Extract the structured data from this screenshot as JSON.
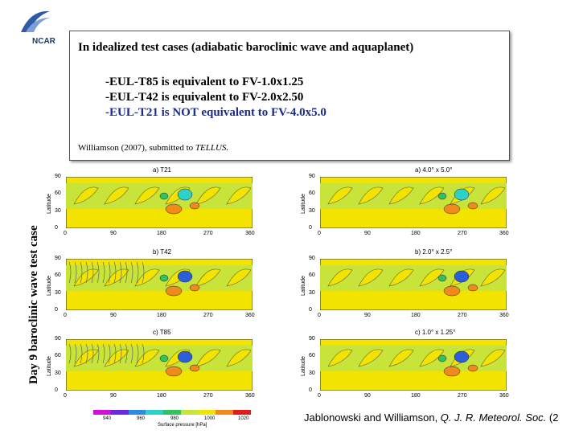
{
  "logo": {
    "text": "NCAR"
  },
  "box": {
    "headline": "In idealized test cases (adiabatic baroclinic wave and aquaplanet)",
    "lines": [
      "-EUL-T85 is equivalent to FV-1.0x1.25",
      "-EUL-T42 is equivalent to FV-2.0x2.50",
      "-EUL-T21 is NOT equivalent to FV-4.0x5.0"
    ],
    "citation_prefix": "Williamson (2007), submitted to ",
    "citation_journal": "TELLUS."
  },
  "side_label": "Day 9 baroclinic wave test case",
  "panels": [
    {
      "title": "a) T21"
    },
    {
      "title": "a) 4.0° x 5.0°"
    },
    {
      "title": "b) T42"
    },
    {
      "title": "b) 2.0° x 2.5°"
    },
    {
      "title": "c) T85"
    },
    {
      "title": "c) 1.0° x 1.25°"
    }
  ],
  "axes": {
    "x_ticks": [
      "0",
      "90",
      "180",
      "270",
      "360"
    ],
    "y_ticks": [
      "90",
      "60",
      "30",
      "0"
    ],
    "y_label": "Latitude"
  },
  "colorbar": {
    "ticks": [
      "940",
      "960",
      "980",
      "1000",
      "1020"
    ],
    "title": "Surface pressure [hPa]",
    "colors": [
      "#d20fd2",
      "#6a2bd8",
      "#2a8be0",
      "#2ed0c8",
      "#35c060",
      "#c8e33a",
      "#f2e400",
      "#ef8a1c",
      "#e11c1c"
    ]
  },
  "footer": {
    "authors": "Jablonowski and Williamson, ",
    "journal": "Q. J. R. Meteorol. Soc.",
    "tail": " (2"
  }
}
